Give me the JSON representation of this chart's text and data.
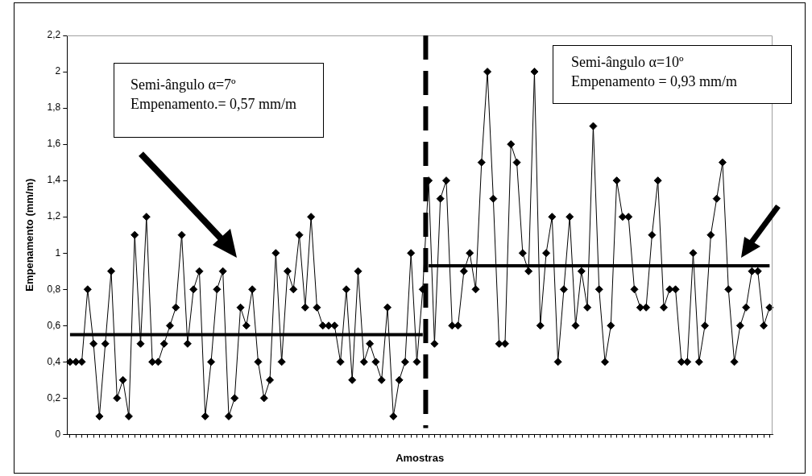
{
  "chart_data": {
    "type": "line",
    "xlabel": "Amostras",
    "ylabel": "Empenamento (mm/m)",
    "marker": "diamond",
    "tick_labels": "y",
    "categories": [
      null,
      null,
      null,
      null,
      null,
      null,
      null,
      null,
      null,
      null,
      null,
      null,
      null,
      null,
      null,
      null,
      null,
      null,
      null,
      null,
      null,
      null,
      null,
      null,
      null,
      null,
      null,
      null,
      null,
      null,
      null,
      null,
      null,
      null,
      null,
      null,
      null,
      null,
      null,
      null,
      null,
      null,
      null,
      null,
      null,
      null,
      null,
      null,
      null,
      null,
      null,
      null,
      null,
      null,
      null,
      null,
      null,
      null,
      null,
      null,
      null,
      null,
      null,
      null,
      null,
      null,
      null,
      null,
      null,
      null,
      null,
      null,
      null,
      null,
      null,
      null,
      null,
      null,
      null,
      null,
      null,
      null,
      null,
      null,
      null,
      null,
      null,
      null,
      null,
      null,
      null,
      null,
      null,
      null,
      null,
      null,
      null,
      null,
      null,
      null,
      null,
      null,
      null,
      null,
      null,
      null,
      null,
      null,
      null,
      null,
      null,
      null,
      null,
      null,
      null,
      null,
      null,
      null,
      null,
      null
    ],
    "series": [
      {
        "color": "#000000",
        "values": [
          0.4,
          0.4,
          0.4,
          0.8,
          0.5,
          0.1,
          0.5,
          0.9,
          0.2,
          0.3,
          0.1,
          1.1,
          0.5,
          1.2,
          0.4,
          0.4,
          0.5,
          0.6,
          0.7,
          1.1,
          0.5,
          0.8,
          0.9,
          0.1,
          0.4,
          0.8,
          0.9,
          0.1,
          0.2,
          0.7,
          0.6,
          0.8,
          0.4,
          0.2,
          0.3,
          1.0,
          0.4,
          0.9,
          0.8,
          1.1,
          0.7,
          1.2,
          0.7,
          0.6,
          0.6,
          0.6,
          0.4,
          0.8,
          0.3,
          0.9,
          0.4,
          0.5,
          0.4,
          0.3,
          0.7,
          0.1,
          0.3,
          0.4,
          1.0,
          0.4,
          0.8,
          1.4,
          0.5,
          1.3,
          1.4,
          0.6,
          0.6,
          0.9,
          1.0,
          0.8,
          1.5,
          2.0,
          1.3,
          0.5,
          0.5,
          1.6,
          1.5,
          1.0,
          0.9,
          2.0,
          0.6,
          1.0,
          1.2,
          0.4,
          0.8,
          1.2,
          0.6,
          0.9,
          0.7,
          1.7,
          0.8,
          0.4,
          0.6,
          1.4,
          1.2,
          1.2,
          0.8,
          0.7,
          0.7,
          1.1,
          1.4,
          0.7,
          0.8,
          0.8,
          0.4,
          0.4,
          1.0,
          0.4,
          0.6,
          1.1,
          1.3,
          1.5,
          0.8,
          0.4,
          0.6,
          0.7,
          0.9,
          0.9,
          0.6,
          0.7
        ]
      },
      {
        "color": "#000000",
        "marker": "none",
        "values": [
          0.55,
          0.55,
          0.55,
          0.55,
          0.55,
          0.55,
          0.55,
          0.55,
          0.55,
          0.55,
          0.55,
          0.55,
          0.55,
          0.55,
          0.55,
          0.55,
          0.55,
          0.55,
          0.55,
          0.55,
          0.55,
          0.55,
          0.55,
          0.55,
          0.55,
          0.55,
          0.55,
          0.55,
          0.55,
          0.55,
          0.55,
          0.55,
          0.55,
          0.55,
          0.55,
          0.55,
          0.55,
          0.55,
          0.55,
          0.55,
          0.55,
          0.55,
          0.55,
          0.55,
          0.55,
          0.55,
          0.55,
          0.55,
          0.55,
          0.55,
          0.55,
          0.55,
          0.55,
          0.55,
          0.55,
          0.55,
          0.55,
          0.55,
          0.55,
          0.55,
          0.55,
          null,
          null,
          null,
          null,
          null,
          null,
          null,
          null,
          null,
          null,
          null,
          null,
          null,
          null,
          null,
          null,
          null,
          null,
          null,
          null,
          null,
          null,
          null,
          null,
          null,
          null,
          null,
          null,
          null,
          null,
          null,
          null,
          null,
          null,
          null,
          null,
          null,
          null,
          null,
          null,
          null,
          null,
          null,
          null,
          null,
          null,
          null,
          null,
          null,
          null,
          null,
          null,
          null,
          null,
          null,
          null,
          null,
          null,
          null
        ]
      },
      {
        "color": "#000000",
        "marker": "none",
        "values": [
          null,
          null,
          null,
          null,
          null,
          null,
          null,
          null,
          null,
          null,
          null,
          null,
          null,
          null,
          null,
          null,
          null,
          null,
          null,
          null,
          null,
          null,
          null,
          null,
          null,
          null,
          null,
          null,
          null,
          null,
          null,
          null,
          null,
          null,
          null,
          null,
          null,
          null,
          null,
          null,
          null,
          null,
          null,
          null,
          null,
          null,
          null,
          null,
          null,
          null,
          null,
          null,
          null,
          null,
          null,
          null,
          null,
          null,
          null,
          null,
          null,
          0.93,
          0.93,
          0.93,
          0.93,
          0.93,
          0.93,
          0.93,
          0.93,
          0.93,
          0.93,
          0.93,
          0.93,
          0.93,
          0.93,
          0.93,
          0.93,
          0.93,
          0.93,
          0.93,
          0.93,
          0.93,
          0.93,
          0.93,
          0.93,
          0.93,
          0.93,
          0.93,
          0.93,
          0.93,
          0.93,
          0.93,
          0.93,
          0.93,
          0.93,
          0.93,
          0.93,
          0.93,
          0.93,
          0.93,
          0.93,
          0.93,
          0.93,
          0.93,
          0.93,
          0.93,
          0.93,
          0.93,
          0.93,
          0.93,
          0.93,
          0.93,
          0.93,
          0.93,
          0.93,
          0.93,
          0.93,
          0.93,
          0.93,
          0.93
        ]
      }
    ],
    "ylim": [
      0,
      2.2
    ],
    "yticks": [
      0,
      {
        "value": 0.2,
        "label": "0,2"
      },
      {
        "value": 0.4,
        "label": "0,4"
      },
      {
        "value": 0.6,
        "label": "0,6"
      },
      {
        "value": 0.8,
        "label": "0,8"
      },
      1,
      {
        "value": 1.2,
        "label": "1,2"
      },
      {
        "value": 1.4,
        "label": "1,4"
      },
      {
        "value": 1.6,
        "label": "1,6"
      },
      {
        "value": 1.8,
        "label": "1,8"
      },
      2,
      {
        "value": 2.2,
        "label": "2,2"
      }
    ],
    "ref_lines": [
      {
        "axis": "x",
        "line_style": "dashed",
        "color": "#000000"
      }
    ],
    "annotations": [
      "Semi-ângulo α=7º",
      "Empenamento.= 0,57 mm/m",
      "Semi-ângulo α=10º",
      "Empenamento = 0,93 mm/m"
    ]
  }
}
